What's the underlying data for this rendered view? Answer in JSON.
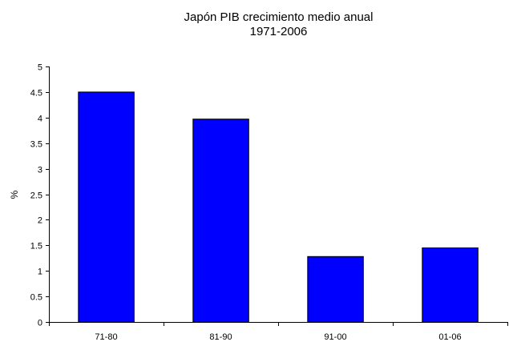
{
  "chart_data": {
    "type": "bar",
    "title": "Japón PIB crecimiento medio anual",
    "subtitle": "1971-2006",
    "xlabel": "",
    "ylabel": "%",
    "categories": [
      "71-80",
      "81-90",
      "91-00",
      "01-06"
    ],
    "values": [
      4.5,
      3.97,
      1.28,
      1.45
    ],
    "ylim": [
      0,
      5
    ],
    "yticks": [
      "0",
      "0.5",
      "1",
      "1.5",
      "2",
      "2.5",
      "3",
      "3.5",
      "4",
      "4.5",
      "5"
    ],
    "grid": false,
    "legend": "none",
    "bar_color": "#0000FF",
    "bar_border_color": "#000000"
  }
}
